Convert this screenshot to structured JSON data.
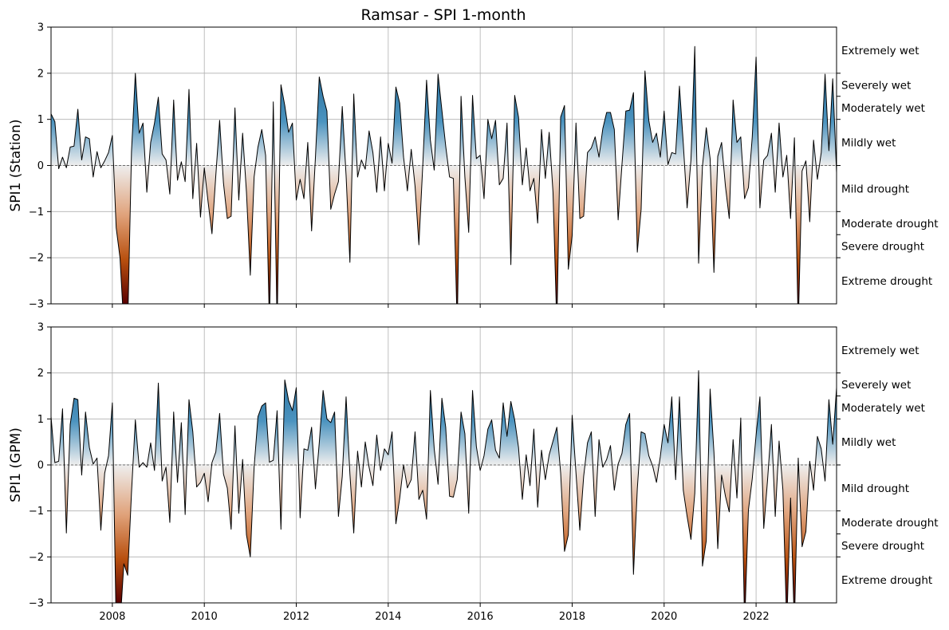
{
  "chart_data": {
    "title": "Ramsar - SPI 1-month",
    "type": "area",
    "x_ticks": [
      "2008",
      "2010",
      "2012",
      "2014",
      "2016",
      "2018",
      "2020",
      "2022"
    ],
    "xlim": [
      "2006-09",
      "2023-10"
    ],
    "ylim": [
      -3,
      3
    ],
    "y_ticks": [
      -3,
      -2,
      -1,
      0,
      1,
      2,
      3
    ],
    "y_tick_labels": [
      "−3",
      "−2",
      "−1",
      "0",
      "1",
      "2",
      "3"
    ],
    "grid": true,
    "category_labels": [
      {
        "label": "Extremely wet",
        "y": 2.5
      },
      {
        "label": "Severely wet",
        "y": 1.75
      },
      {
        "label": "Moderately wet",
        "y": 1.25
      },
      {
        "label": "Mildly wet",
        "y": 0.5
      },
      {
        "label": "Mild drought",
        "y": -0.5
      },
      {
        "label": "Moderate drought",
        "y": -1.25
      },
      {
        "label": "Severe drought",
        "y": -1.75
      },
      {
        "label": "Extreme drought",
        "y": -2.5
      }
    ],
    "category_bounds": [
      -2,
      -1.5,
      -1,
      0,
      1,
      1.5,
      2
    ],
    "colors": {
      "wet": "#2a7aa6",
      "drought_mid": "#c0581a",
      "drought_deep": "#6a0000",
      "neutral": "#f0f0f0"
    },
    "series": [
      {
        "ylabel": "SPI1 (Station)",
        "start": "2006-09",
        "values": [
          1.12,
          0.95,
          -0.07,
          0.18,
          -0.05,
          0.4,
          0.42,
          1.22,
          0.12,
          0.62,
          0.58,
          -0.25,
          0.3,
          -0.05,
          0.1,
          0.28,
          0.65,
          -1.35,
          -2.0,
          -3.5,
          -3.5,
          0.3,
          2.0,
          0.7,
          0.92,
          -0.58,
          0.5,
          0.92,
          1.48,
          0.25,
          0.12,
          -0.62,
          1.42,
          -0.32,
          0.08,
          -0.35,
          1.65,
          -0.72,
          0.48,
          -1.12,
          -0.05,
          -0.8,
          -1.48,
          -0.22,
          0.98,
          -0.38,
          -1.15,
          -1.1,
          1.25,
          -0.75,
          0.7,
          -0.58,
          -2.38,
          -0.25,
          0.4,
          0.78,
          0.22,
          -3.5,
          1.38,
          -3.5,
          1.75,
          1.3,
          0.72,
          0.92,
          -0.75,
          -0.3,
          -0.72,
          0.5,
          -1.42,
          0.18,
          1.92,
          1.5,
          1.18,
          -0.95,
          -0.62,
          -0.35,
          1.28,
          -0.22,
          -2.1,
          1.55,
          -0.25,
          0.12,
          -0.08,
          0.75,
          0.28,
          -0.58,
          0.62,
          -0.55,
          0.48,
          0.05,
          1.7,
          1.35,
          0.18,
          -0.55,
          0.35,
          -0.45,
          -1.72,
          -0.02,
          1.85,
          0.55,
          -0.1,
          1.98,
          1.2,
          0.42,
          -0.25,
          -0.28,
          -3.5,
          1.5,
          -0.25,
          -1.45,
          1.52,
          0.15,
          0.22,
          -0.72,
          1.0,
          0.58,
          0.98,
          -0.42,
          -0.28,
          0.92,
          -2.15,
          1.52,
          1.05,
          -0.42,
          0.38,
          -0.55,
          -0.28,
          -1.25,
          0.78,
          -0.28,
          0.72,
          -0.58,
          -3.5,
          1.05,
          1.3,
          -2.25,
          -1.52,
          0.92,
          -1.15,
          -1.1,
          0.28,
          0.38,
          0.62,
          0.18,
          0.8,
          1.15,
          1.15,
          0.78,
          -1.18,
          0.02,
          1.18,
          1.2,
          1.58,
          -1.88,
          -0.95,
          2.05,
          0.98,
          0.5,
          0.7,
          0.18,
          1.18,
          0.02,
          0.28,
          0.25,
          1.72,
          0.48,
          -0.92,
          0.12,
          2.58,
          -2.12,
          -0.02,
          0.82,
          0.15,
          -2.32,
          0.2,
          0.5,
          -0.45,
          -1.15,
          1.42,
          0.5,
          0.62,
          -0.72,
          -0.48,
          0.62,
          2.35,
          -0.92,
          0.12,
          0.22,
          0.7,
          -0.58,
          0.92,
          -0.25,
          0.22,
          -1.15,
          0.6,
          -3.5,
          -0.12,
          0.1,
          -1.22,
          0.55,
          -0.3,
          0.28,
          1.98,
          0.32,
          1.88,
          -0.15,
          0.02
        ]
      },
      {
        "ylabel": "SPI1 (GPM)",
        "start": "2006-09",
        "values": [
          1.05,
          0.05,
          0.08,
          1.22,
          -1.48,
          0.88,
          1.45,
          1.42,
          -0.22,
          1.15,
          0.38,
          0.02,
          0.15,
          -1.42,
          -0.18,
          0.2,
          1.35,
          -3.5,
          -3.5,
          -2.15,
          -2.4,
          -0.6,
          0.98,
          -0.05,
          0.05,
          -0.05,
          0.48,
          -0.12,
          1.78,
          -0.35,
          -0.05,
          -1.25,
          1.15,
          -0.38,
          0.92,
          -1.08,
          1.42,
          0.72,
          -0.48,
          -0.38,
          -0.18,
          -0.8,
          0.05,
          0.28,
          1.12,
          -0.2,
          -0.5,
          -1.4,
          0.85,
          -1.05,
          0.12,
          -1.52,
          -2.0,
          -0.05,
          1.05,
          1.28,
          1.35,
          0.06,
          0.1,
          1.18,
          -1.4,
          1.85,
          1.4,
          1.18,
          1.68,
          -1.15,
          0.35,
          0.32,
          0.82,
          -0.52,
          0.48,
          1.62,
          1.0,
          0.92,
          1.15,
          -1.12,
          -0.25,
          1.48,
          -0.2,
          -1.48,
          0.3,
          -0.48,
          0.5,
          -0.05,
          -0.45,
          0.65,
          -0.12,
          0.35,
          0.22,
          0.72,
          -1.28,
          -0.72,
          0.0,
          -0.5,
          -0.32,
          0.72,
          -0.75,
          -0.55,
          -1.18,
          1.62,
          0.35,
          -0.42,
          1.45,
          0.82,
          -0.68,
          -0.7,
          -0.32,
          1.15,
          0.68,
          -1.05,
          1.62,
          0.4,
          -0.12,
          0.2,
          0.78,
          0.98,
          0.32,
          0.15,
          1.35,
          0.62,
          1.38,
          0.98,
          0.38,
          -0.75,
          0.22,
          -0.45,
          0.78,
          -0.92,
          0.32,
          -0.32,
          0.22,
          0.52,
          0.82,
          -0.18,
          -1.88,
          -1.52,
          1.08,
          -0.18,
          -1.42,
          -0.25,
          0.48,
          0.72,
          -1.12,
          0.55,
          -0.05,
          0.12,
          0.42,
          -0.55,
          0.02,
          0.25,
          0.88,
          1.12,
          -2.38,
          -0.52,
          0.72,
          0.68,
          0.2,
          -0.02,
          -0.38,
          0.18,
          0.88,
          0.48,
          1.48,
          -0.32,
          1.48,
          -0.55,
          -1.12,
          -1.62,
          -0.62,
          2.05,
          -2.2,
          -1.65,
          1.65,
          0.28,
          -1.82,
          -0.22,
          -0.68,
          -1.02,
          0.55,
          -0.72,
          1.02,
          -3.5,
          -0.98,
          -0.3,
          0.65,
          1.48,
          -1.38,
          -0.32,
          0.88,
          -1.12,
          0.52,
          -0.55,
          -3.5,
          -0.72,
          -3.5,
          0.15,
          -1.78,
          -1.45,
          0.08,
          -0.55,
          0.62,
          0.35,
          -0.35,
          1.42,
          0.45,
          1.68,
          -0.28,
          0.28
        ]
      }
    ]
  }
}
